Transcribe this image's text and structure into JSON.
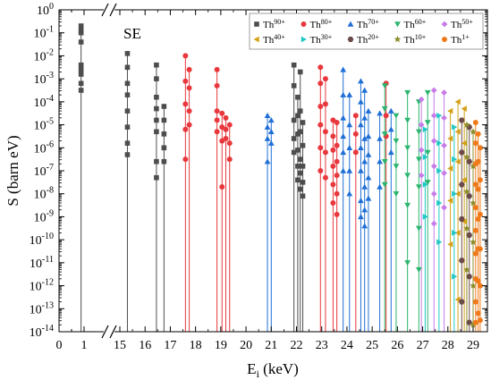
{
  "chart_data": {
    "type": "scatter",
    "panel_label": "SE",
    "xlabel": "E",
    "xlabel_sub": "i",
    "xlabel_unit": " (keV)",
    "ylabel": "S (barn eV)",
    "ylog": true,
    "ylim_exp": [
      -14,
      0
    ],
    "x_break": true,
    "x_segments": [
      [
        0,
        1
      ],
      [
        15,
        29.5
      ]
    ],
    "xticks": [
      "0",
      "0.5",
      "1",
      "15",
      "16",
      "17",
      "18",
      "19",
      "20",
      "21",
      "22",
      "23",
      "24",
      "25",
      "26",
      "27",
      "28",
      "29"
    ],
    "xtick_values": [
      0,
      0.5,
      1,
      15,
      16,
      17,
      18,
      19,
      20,
      21,
      22,
      23,
      24,
      25,
      26,
      27,
      28,
      29
    ],
    "xtick_labels": [
      "0",
      "",
      "1",
      "15",
      "16",
      "17",
      "18",
      "19",
      "20",
      "21",
      "22",
      "23",
      "24",
      "25",
      "26",
      "27",
      "28",
      "29"
    ],
    "yticks_exp": [
      -14,
      -13,
      -12,
      -11,
      -10,
      -9,
      -8,
      -7,
      -6,
      -5,
      -4,
      -3,
      -2,
      -1,
      0
    ],
    "legend": [
      {
        "name": "Th",
        "charge": "90+",
        "color": "#4d4d4d",
        "marker": "square"
      },
      {
        "name": "Th",
        "charge": "80+",
        "color": "#e8383d",
        "marker": "circle"
      },
      {
        "name": "Th",
        "charge": "70+",
        "color": "#1f6fd6",
        "marker": "triangle-up"
      },
      {
        "name": "Th",
        "charge": "60+",
        "color": "#2bb56e",
        "marker": "triangle-down"
      },
      {
        "name": "Th",
        "charge": "50+",
        "color": "#c77ce8",
        "marker": "diamond"
      },
      {
        "name": "Th",
        "charge": "40+",
        "color": "#d4a017",
        "marker": "triangle-left"
      },
      {
        "name": "Th",
        "charge": "30+",
        "color": "#21c7c7",
        "marker": "triangle-right"
      },
      {
        "name": "Th",
        "charge": "20+",
        "color": "#6b4a4a",
        "marker": "hexagon"
      },
      {
        "name": "Th",
        "charge": "10+",
        "color": "#8c8c2a",
        "marker": "star"
      },
      {
        "name": "Th",
        "charge": "1+",
        "color": "#f07a1a",
        "marker": "circle"
      }
    ],
    "legend_position": "top-right",
    "series": [
      {
        "name": "Th90+",
        "points": [
          [
            0.88,
            -0.7
          ],
          [
            0.88,
            -0.9
          ],
          [
            0.88,
            -1.0
          ],
          [
            0.88,
            -1.4
          ],
          [
            0.88,
            -2.4
          ],
          [
            0.88,
            -2.6
          ],
          [
            0.88,
            -2.8
          ],
          [
            0.88,
            -3.2
          ],
          [
            0.88,
            -3.5
          ],
          [
            15.3,
            -1.9
          ],
          [
            15.3,
            -2.5
          ],
          [
            15.3,
            -3.2
          ],
          [
            15.3,
            -3.7
          ],
          [
            15.3,
            -4.4
          ],
          [
            15.3,
            -5.1
          ],
          [
            15.3,
            -5.8
          ],
          [
            15.3,
            -6.3
          ],
          [
            16.45,
            -2.4
          ],
          [
            16.45,
            -3.0
          ],
          [
            16.45,
            -3.8
          ],
          [
            16.45,
            -4.3
          ],
          [
            16.45,
            -4.8
          ],
          [
            16.45,
            -5.3
          ],
          [
            16.45,
            -6.6
          ],
          [
            16.45,
            -7.3
          ],
          [
            16.75,
            -4.2
          ],
          [
            16.75,
            -4.8
          ],
          [
            16.75,
            -5.4
          ],
          [
            16.75,
            -6.0
          ],
          [
            16.75,
            -6.6
          ],
          [
            21.9,
            -2.4
          ],
          [
            21.9,
            -3.3
          ],
          [
            21.9,
            -4.8
          ],
          [
            21.9,
            -5.6
          ],
          [
            21.9,
            -6.2
          ],
          [
            22.05,
            -3.8
          ],
          [
            22.05,
            -4.6
          ],
          [
            22.05,
            -5.4
          ],
          [
            22.05,
            -6.1
          ],
          [
            22.05,
            -6.8
          ],
          [
            22.05,
            -7.4
          ],
          [
            22.15,
            -2.7
          ],
          [
            22.15,
            -4.4
          ],
          [
            22.15,
            -5.3
          ],
          [
            22.15,
            -6.5
          ],
          [
            22.15,
            -7.1
          ],
          [
            22.15,
            -7.8
          ],
          [
            22.25,
            -4.9
          ],
          [
            22.25,
            -5.9
          ],
          [
            22.25,
            -6.8
          ],
          [
            22.25,
            -7.5
          ],
          [
            22.25,
            -8.1
          ]
        ]
      },
      {
        "name": "Th80+",
        "points": [
          [
            17.6,
            -2.0
          ],
          [
            17.6,
            -3.1
          ],
          [
            17.6,
            -4.1
          ],
          [
            17.6,
            -5.2
          ],
          [
            17.6,
            -6.5
          ],
          [
            17.75,
            -2.6
          ],
          [
            17.75,
            -3.4
          ],
          [
            17.75,
            -4.4
          ],
          [
            17.75,
            -5.0
          ],
          [
            18.85,
            -2.6
          ],
          [
            18.85,
            -3.3
          ],
          [
            18.85,
            -4.4
          ],
          [
            18.85,
            -4.8
          ],
          [
            18.85,
            -5.3
          ],
          [
            19.05,
            -4.5
          ],
          [
            19.05,
            -5.1
          ],
          [
            19.05,
            -5.7
          ],
          [
            19.05,
            -7.7
          ],
          [
            19.2,
            -4.7
          ],
          [
            19.2,
            -5.2
          ],
          [
            19.2,
            -5.6
          ],
          [
            19.35,
            -5.0
          ],
          [
            19.35,
            -5.8
          ],
          [
            19.35,
            -6.5
          ],
          [
            22.95,
            -2.5
          ],
          [
            22.95,
            -3.2
          ],
          [
            22.95,
            -4.2
          ],
          [
            22.95,
            -5.0
          ],
          [
            22.95,
            -6.0
          ],
          [
            22.95,
            -7.0
          ],
          [
            23.15,
            -3.0
          ],
          [
            23.15,
            -4.1
          ],
          [
            23.15,
            -5.3
          ],
          [
            23.15,
            -6.2
          ],
          [
            23.15,
            -7.3
          ],
          [
            23.45,
            -4.8
          ],
          [
            23.45,
            -5.5
          ],
          [
            23.45,
            -6.1
          ],
          [
            23.45,
            -6.8
          ],
          [
            23.45,
            -7.6
          ],
          [
            23.45,
            -8.4
          ],
          [
            23.6,
            -4.9
          ],
          [
            23.6,
            -5.9
          ],
          [
            23.6,
            -6.6
          ],
          [
            23.6,
            -7.2
          ],
          [
            23.6,
            -8.0
          ],
          [
            23.6,
            -8.9
          ],
          [
            24.35,
            -4.6
          ],
          [
            24.35,
            -5.4
          ],
          [
            24.35,
            -6.2
          ],
          [
            25.55,
            -3.2
          ],
          [
            25.55,
            -4.6
          ],
          [
            25.55,
            -5.5
          ]
        ]
      },
      {
        "name": "Th70+",
        "points": [
          [
            20.85,
            -4.6
          ],
          [
            20.85,
            -5.1
          ],
          [
            20.85,
            -5.6
          ],
          [
            20.85,
            -6.6
          ],
          [
            21.0,
            -4.8
          ],
          [
            21.0,
            -5.3
          ],
          [
            21.0,
            -5.8
          ],
          [
            23.85,
            -2.6
          ],
          [
            23.85,
            -3.7
          ],
          [
            23.85,
            -4.7
          ],
          [
            23.85,
            -5.5
          ],
          [
            23.85,
            -6.2
          ],
          [
            23.85,
            -7.0
          ],
          [
            24.1,
            -3.7
          ],
          [
            24.1,
            -5.0
          ],
          [
            24.1,
            -6.0
          ],
          [
            24.1,
            -7.0
          ],
          [
            24.1,
            -8.0
          ],
          [
            24.55,
            -3.1
          ],
          [
            24.55,
            -4.0
          ],
          [
            24.55,
            -5.0
          ],
          [
            24.55,
            -6.0
          ],
          [
            24.55,
            -7.0
          ],
          [
            24.55,
            -8.3
          ],
          [
            24.55,
            -9.0
          ],
          [
            24.7,
            -3.5
          ],
          [
            24.7,
            -4.7
          ],
          [
            24.7,
            -5.6
          ],
          [
            24.7,
            -6.6
          ],
          [
            24.7,
            -7.7
          ],
          [
            24.7,
            -8.7
          ],
          [
            24.7,
            -9.4
          ],
          [
            24.85,
            -4.4
          ],
          [
            24.85,
            -5.5
          ],
          [
            24.85,
            -6.3
          ],
          [
            24.85,
            -7.3
          ],
          [
            24.85,
            -8.2
          ],
          [
            25.3,
            -4.5
          ],
          [
            25.3,
            -5.6
          ],
          [
            25.3,
            -6.6
          ],
          [
            25.3,
            -7.7
          ],
          [
            25.75,
            -4.4
          ],
          [
            25.75,
            -5.2
          ],
          [
            25.75,
            -6.2
          ]
        ]
      },
      {
        "name": "Th60+",
        "points": [
          [
            25.5,
            -3.3
          ],
          [
            25.5,
            -4.3
          ],
          [
            25.5,
            -5.4
          ],
          [
            25.5,
            -6.6
          ],
          [
            25.5,
            -7.6
          ],
          [
            25.95,
            -4.6
          ],
          [
            25.95,
            -5.7
          ],
          [
            25.95,
            -6.8
          ],
          [
            25.95,
            -8.0
          ],
          [
            26.4,
            -3.6
          ],
          [
            26.4,
            -4.8
          ],
          [
            26.4,
            -6.0
          ],
          [
            26.4,
            -7.2
          ],
          [
            26.4,
            -8.5
          ],
          [
            26.4,
            -11.0
          ],
          [
            26.85,
            -4.0
          ],
          [
            26.85,
            -5.3
          ],
          [
            26.85,
            -6.5
          ],
          [
            26.85,
            -7.7
          ],
          [
            26.85,
            -9.5
          ],
          [
            26.85,
            -11.3
          ],
          [
            27.2,
            -3.6
          ],
          [
            27.2,
            -4.9
          ],
          [
            27.2,
            -6.2
          ],
          [
            27.2,
            -7.5
          ]
        ]
      },
      {
        "name": "Th50+",
        "points": [
          [
            26.95,
            -3.9
          ],
          [
            26.95,
            -5.0
          ],
          [
            26.95,
            -6.1
          ],
          [
            26.95,
            -7.2
          ],
          [
            27.45,
            -3.5
          ],
          [
            27.45,
            -4.6
          ],
          [
            27.45,
            -5.7
          ],
          [
            27.45,
            -6.8
          ],
          [
            27.45,
            -8.0
          ],
          [
            27.45,
            -9.3
          ],
          [
            27.85,
            -3.6
          ],
          [
            27.85,
            -4.7
          ],
          [
            27.85,
            -5.9
          ],
          [
            27.85,
            -7.1
          ],
          [
            27.85,
            -8.6
          ]
        ]
      },
      {
        "name": "Th40+",
        "points": [
          [
            28.1,
            -4.4
          ],
          [
            28.1,
            -5.6
          ],
          [
            28.1,
            -6.9
          ],
          [
            28.1,
            -8.3
          ],
          [
            28.1,
            -10.2
          ],
          [
            28.4,
            -4.0
          ],
          [
            28.4,
            -5.3
          ],
          [
            28.4,
            -6.6
          ],
          [
            28.4,
            -8.0
          ],
          [
            28.4,
            -9.7
          ],
          [
            28.4,
            -12.6
          ],
          [
            28.65,
            -4.3
          ],
          [
            28.65,
            -5.8
          ],
          [
            28.65,
            -7.4
          ],
          [
            28.65,
            -9.2
          ]
        ]
      },
      {
        "name": "Th30+",
        "points": [
          [
            27.1,
            -5.2
          ],
          [
            27.1,
            -6.4
          ],
          [
            27.1,
            -7.6
          ],
          [
            27.1,
            -9.0
          ],
          [
            27.65,
            -4.6
          ],
          [
            27.65,
            -5.8
          ],
          [
            27.65,
            -7.0
          ],
          [
            27.65,
            -8.4
          ],
          [
            27.65,
            -10.1
          ],
          [
            28.25,
            -5.1
          ],
          [
            28.25,
            -6.5
          ],
          [
            28.25,
            -8.0
          ],
          [
            28.25,
            -9.7
          ],
          [
            28.25,
            -11.6
          ]
        ]
      },
      {
        "name": "Th20+",
        "points": [
          [
            28.55,
            -4.8
          ],
          [
            28.55,
            -6.2
          ],
          [
            28.55,
            -7.6
          ],
          [
            28.55,
            -9.1
          ],
          [
            28.55,
            -10.9
          ],
          [
            28.55,
            -12.7
          ],
          [
            28.85,
            -5.1
          ],
          [
            28.85,
            -6.6
          ],
          [
            28.85,
            -8.1
          ],
          [
            28.85,
            -9.8
          ],
          [
            28.85,
            -11.6
          ],
          [
            28.85,
            -13.6
          ]
        ]
      },
      {
        "name": "Th10+",
        "points": [
          [
            28.75,
            -5.0
          ],
          [
            28.75,
            -6.4
          ],
          [
            28.75,
            -7.9
          ],
          [
            28.75,
            -9.5
          ],
          [
            28.75,
            -11.3
          ],
          [
            29.0,
            -5.3
          ],
          [
            29.0,
            -6.8
          ],
          [
            29.0,
            -8.4
          ],
          [
            29.0,
            -10.1
          ],
          [
            29.0,
            -12.0
          ],
          [
            29.0,
            -13.7
          ]
        ]
      },
      {
        "name": "Th1+",
        "points": [
          [
            29.1,
            -4.9
          ],
          [
            29.1,
            -5.8
          ],
          [
            29.1,
            -6.7
          ],
          [
            29.1,
            -7.6
          ],
          [
            29.1,
            -8.6
          ],
          [
            29.1,
            -9.6
          ],
          [
            29.1,
            -10.6
          ],
          [
            29.1,
            -11.7
          ],
          [
            29.1,
            -12.7
          ],
          [
            29.1,
            -13.6
          ],
          [
            29.2,
            -5.4
          ],
          [
            29.2,
            -6.6
          ],
          [
            29.2,
            -7.8
          ],
          [
            29.2,
            -9.1
          ],
          [
            29.2,
            -10.4
          ],
          [
            29.2,
            -11.8
          ],
          [
            29.2,
            -13.2
          ],
          [
            29.28,
            -6.0
          ],
          [
            29.28,
            -7.4
          ],
          [
            29.28,
            -8.9
          ],
          [
            29.28,
            -10.4
          ],
          [
            29.28,
            -12.0
          ],
          [
            29.28,
            -13.5
          ]
        ]
      }
    ]
  }
}
